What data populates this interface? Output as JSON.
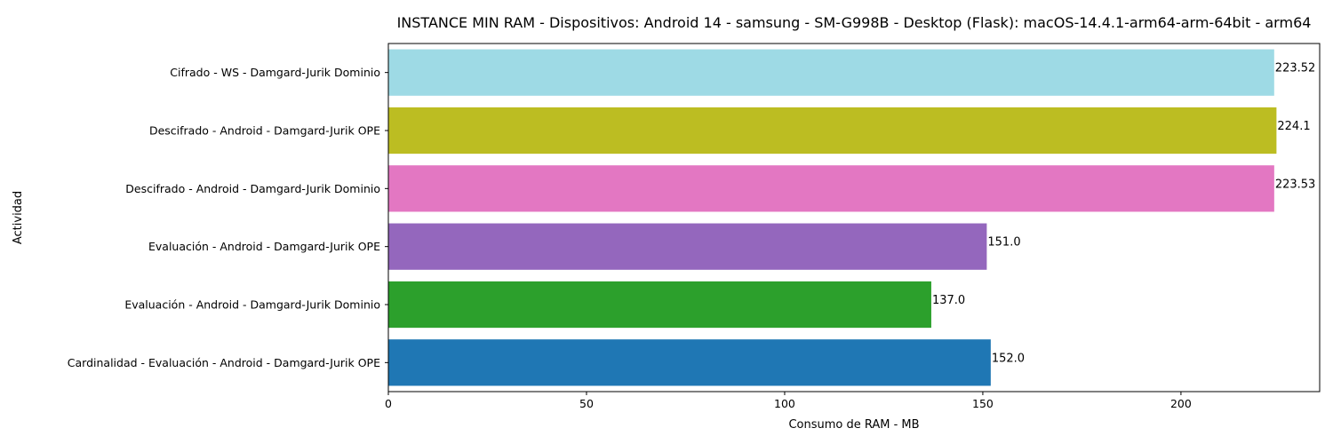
{
  "chart_data": {
    "type": "bar",
    "orientation": "horizontal",
    "title": "INSTANCE MIN RAM - Dispositivos: Android 14 - samsung - SM-G998B - Desktop (Flask): macOS-14.4.1-arm64-arm-64bit - arm64",
    "xlabel": "Consumo de RAM - MB",
    "ylabel": "Actividad",
    "xlim": [
      0,
      235
    ],
    "xticks": [
      0,
      50,
      100,
      150,
      200
    ],
    "grid": false,
    "categories": [
      "Cifrado - WS - Damgard-Jurik Dominio",
      "Descifrado - Android - Damgard-Jurik OPE",
      "Descifrado - Android - Damgard-Jurik Dominio",
      "Evaluación - Android - Damgard-Jurik OPE",
      "Evaluación - Android - Damgard-Jurik Dominio",
      "Cardinalidad - Evaluación - Android - Damgard-Jurik OPE"
    ],
    "values": [
      223.52,
      224.1,
      223.53,
      151.0,
      137.0,
      152.0
    ],
    "value_labels": [
      "223.52",
      "224.1",
      "223.53",
      "151.0",
      "137.0",
      "152.0"
    ],
    "colors": [
      "#9edae5",
      "#bcbd22",
      "#e377c2",
      "#9467bd",
      "#2ca02c",
      "#1f77b4"
    ]
  }
}
